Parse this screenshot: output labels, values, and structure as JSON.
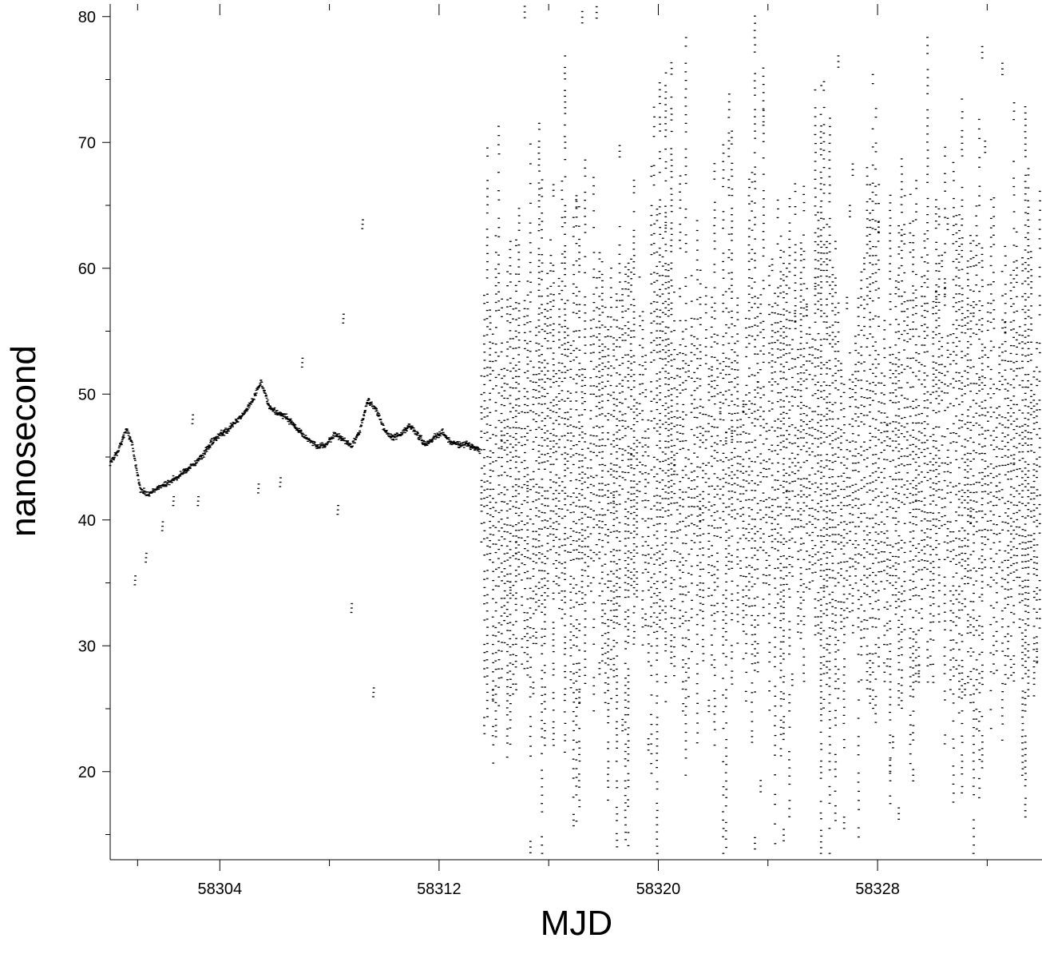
{
  "chart_data": {
    "type": "scatter",
    "title": "",
    "xlabel": "MJD",
    "ylabel": "nanosecond",
    "xlim": [
      58300.0,
      58334.0
    ],
    "ylim": [
      13.0,
      81.0
    ],
    "x_ticks_major": [
      58304,
      58312,
      58320,
      58328
    ],
    "x_ticks_minor": [
      58301,
      58308,
      58316,
      58324,
      58332
    ],
    "x_tick_labels": [
      "58304",
      "58312",
      "58320",
      "58328"
    ],
    "y_ticks_major": [
      20,
      30,
      40,
      50,
      60,
      70,
      80
    ],
    "y_ticks_minor": [
      15,
      25,
      35,
      45,
      55,
      65,
      75
    ],
    "y_tick_labels": [
      "20",
      "30",
      "40",
      "50",
      "60",
      "70",
      "80"
    ],
    "grid": false,
    "legend": "none",
    "marker": "small horizontal dash",
    "color": "#000000",
    "series": [
      {
        "segment": "stable",
        "x_range": [
          58300.0,
          58313.5
        ],
        "trend": {
          "x": [
            58300.0,
            58300.3,
            58300.6,
            58300.8,
            58301.1,
            58301.4,
            58301.7,
            58302.0,
            58302.3,
            58302.5,
            58302.8,
            58303.1,
            58303.4,
            58303.7,
            58304.0,
            58304.3,
            58304.6,
            58304.9,
            58305.2,
            58305.5,
            58305.8,
            58306.1,
            58306.4,
            58306.7,
            58307.0,
            58307.3,
            58307.6,
            58307.9,
            58308.2,
            58308.5,
            58308.8,
            58309.1,
            58309.4,
            58309.7,
            58310.0,
            58310.3,
            58310.6,
            58310.9,
            58311.2,
            58311.5,
            58311.8,
            58312.1,
            58312.4,
            58312.7,
            58313.0,
            58313.5
          ],
          "y": [
            44.5,
            45.5,
            47.3,
            46.0,
            42.5,
            42.0,
            42.5,
            42.8,
            43.2,
            43.5,
            44.0,
            44.5,
            45.2,
            46.2,
            46.8,
            47.2,
            47.8,
            48.5,
            49.5,
            51.0,
            49.0,
            48.5,
            48.2,
            47.5,
            46.8,
            46.2,
            45.8,
            46.0,
            46.8,
            46.5,
            45.8,
            47.0,
            49.5,
            48.8,
            47.2,
            46.5,
            46.8,
            47.5,
            46.8,
            46.0,
            46.5,
            47.0,
            46.2,
            46.0,
            46.0,
            45.5
          ]
        },
        "outliers": {
          "x": [
            58300.9,
            58301.3,
            58301.9,
            58302.3,
            58303.0,
            58303.2,
            58305.4,
            58306.2,
            58307.0,
            58308.3,
            58308.5,
            58308.8,
            58309.2,
            58309.6
          ],
          "y": [
            35.2,
            37.0,
            39.5,
            41.5,
            48.0,
            41.5,
            42.5,
            43.0,
            52.5,
            40.8,
            56.0,
            33.0,
            63.5,
            26.3
          ]
        }
      },
      {
        "segment": "noisy",
        "x_range": [
          58313.5,
          58334.0
        ],
        "y_range": [
          13.5,
          80.2
        ]
      }
    ]
  }
}
